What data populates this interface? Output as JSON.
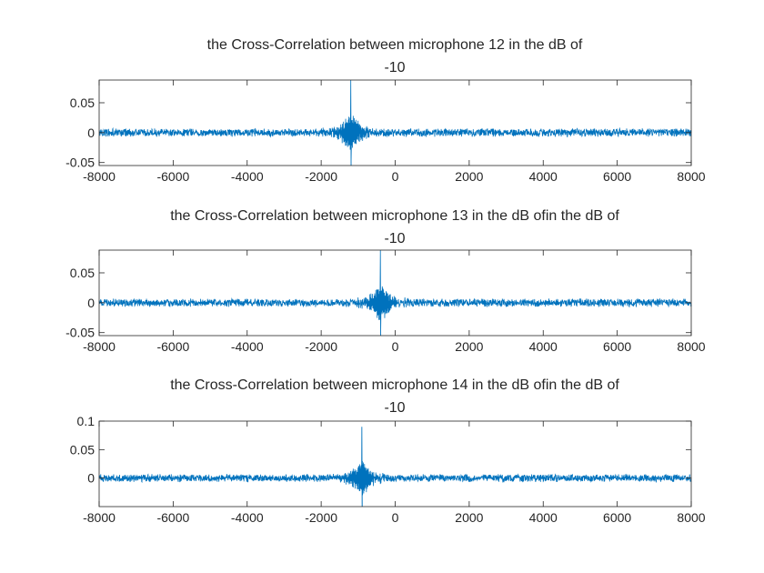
{
  "figure": {
    "background": "#ffffff",
    "line_color": "#0072BD",
    "axis_color": "#262626"
  },
  "chart_data": [
    {
      "type": "line",
      "title_lines": [
        "the Cross-Correlation between microphone 12 in the dB of",
        "-10"
      ],
      "xlim": [
        -8000,
        8000
      ],
      "ylim": [
        -0.055,
        0.088
      ],
      "xticks": [
        -8000,
        -6000,
        -4000,
        -2000,
        0,
        2000,
        4000,
        6000,
        8000
      ],
      "xtick_labels": [
        "-8000",
        "-6000",
        "-4000",
        "-2000",
        "0",
        "2000",
        "4000",
        "6000",
        "8000"
      ],
      "yticks": [
        -0.05,
        0,
        0.05
      ],
      "ytick_labels": [
        "-0.05",
        "0",
        "0.05"
      ],
      "peak_lag": -1200,
      "peak_max": 0.088,
      "peak_min": -0.055,
      "noise_amplitude": 0.007,
      "grid": false,
      "series": [
        {
          "values_source": "synthetic noise with central peak"
        }
      ]
    },
    {
      "type": "line",
      "title_lines": [
        "the Cross-Correlation between microphone 13 in the dB ofin the dB of",
        "-10"
      ],
      "xlim": [
        -8000,
        8000
      ],
      "ylim": [
        -0.055,
        0.088
      ],
      "xticks": [
        -8000,
        -6000,
        -4000,
        -2000,
        0,
        2000,
        4000,
        6000,
        8000
      ],
      "xtick_labels": [
        "-8000",
        "-6000",
        "-4000",
        "-2000",
        "0",
        "2000",
        "4000",
        "6000",
        "8000"
      ],
      "yticks": [
        -0.05,
        0,
        0.05
      ],
      "ytick_labels": [
        "-0.05",
        "0",
        "0.05"
      ],
      "peak_lag": -400,
      "peak_max": 0.088,
      "peak_min": -0.055,
      "noise_amplitude": 0.007,
      "grid": false,
      "series": [
        {
          "values_source": "synthetic noise with central peak"
        }
      ]
    },
    {
      "type": "line",
      "title_lines": [
        "the Cross-Correlation between microphone 14 in the dB ofin the dB of",
        "-10"
      ],
      "xlim": [
        -8000,
        8000
      ],
      "ylim": [
        -0.05,
        0.1
      ],
      "xticks": [
        -8000,
        -6000,
        -4000,
        -2000,
        0,
        2000,
        4000,
        6000,
        8000
      ],
      "xtick_labels": [
        "-8000",
        "-6000",
        "-4000",
        "-2000",
        "0",
        "2000",
        "4000",
        "6000",
        "8000"
      ],
      "yticks": [
        0,
        0.05,
        0.1
      ],
      "ytick_labels": [
        "0",
        "0.05",
        "0.1"
      ],
      "peak_lag": -900,
      "peak_max": 0.09,
      "peak_min": -0.05,
      "noise_amplitude": 0.007,
      "grid": false,
      "series": [
        {
          "values_source": "synthetic noise with central peak"
        }
      ]
    }
  ]
}
